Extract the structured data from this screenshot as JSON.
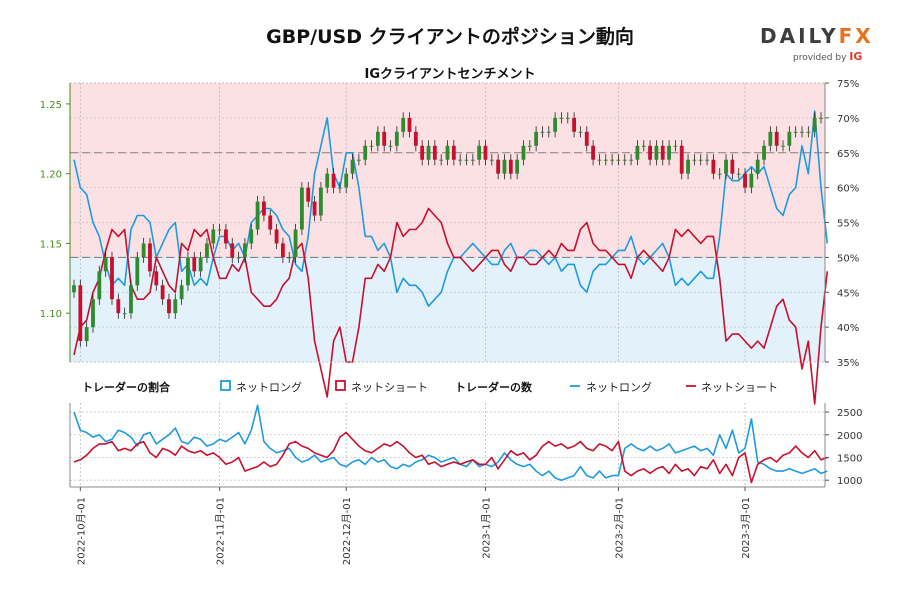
{
  "title": "GBP/USD クライアントのポジション動向",
  "subtitle": "IGクライアントセンチメント",
  "logo": {
    "brand_left": "DAILY",
    "brand_right": "FX",
    "provided_by": "provided by",
    "ig": "IG"
  },
  "colors": {
    "net_long": "#1e9be0",
    "net_short": "#c8102e",
    "up_candle": "#2e8b2e",
    "down_candle": "#c8102e",
    "wick": "#222222",
    "band_short": "#fbe1e3",
    "band_long": "#e3f1fb",
    "price_axis": "#4a8a1c"
  },
  "legend": {
    "ratio_title": "トレーダーの割合",
    "ratio_long": "ネットロング",
    "ratio_short": "ネットショート",
    "count_title": "トレーダーの数",
    "count_long": "ネットロング",
    "count_short": "ネットショート"
  },
  "chart_data": {
    "type": "line",
    "x_ticks": [
      "2022-10月-01",
      "2022-11月-01",
      "2022-12月-01",
      "2023-1月-01",
      "2023-2月-01",
      "2023-3月-01"
    ],
    "price_axis": {
      "ticks": [
        "1.10",
        "1.15",
        "1.20",
        "1.25"
      ],
      "ylim": [
        1.065,
        1.265
      ]
    },
    "percent_axis": {
      "ticks": [
        "35%",
        "40%",
        "45%",
        "50%",
        "55%",
        "60%",
        "65%",
        "70%",
        "75%"
      ],
      "ylim": [
        35,
        75
      ]
    },
    "count_axis": {
      "ticks": [
        "1000",
        "1500",
        "2000",
        "2500"
      ],
      "ylim": [
        850,
        2700
      ]
    },
    "reference_lines": {
      "price": 1.215,
      "percent": 50
    },
    "price_close": [
      1.12,
      1.08,
      1.09,
      1.11,
      1.13,
      1.14,
      1.11,
      1.1,
      1.1,
      1.12,
      1.14,
      1.15,
      1.13,
      1.12,
      1.11,
      1.1,
      1.11,
      1.12,
      1.14,
      1.13,
      1.14,
      1.15,
      1.16,
      1.16,
      1.15,
      1.14,
      1.14,
      1.15,
      1.16,
      1.18,
      1.17,
      1.16,
      1.15,
      1.14,
      1.14,
      1.16,
      1.19,
      1.18,
      1.17,
      1.19,
      1.2,
      1.19,
      1.19,
      1.2,
      1.21,
      1.21,
      1.22,
      1.22,
      1.23,
      1.22,
      1.22,
      1.23,
      1.24,
      1.23,
      1.22,
      1.21,
      1.22,
      1.21,
      1.21,
      1.22,
      1.21,
      1.21,
      1.21,
      1.21,
      1.22,
      1.21,
      1.21,
      1.2,
      1.21,
      1.2,
      1.21,
      1.22,
      1.22,
      1.23,
      1.23,
      1.23,
      1.24,
      1.24,
      1.24,
      1.23,
      1.23,
      1.22,
      1.21,
      1.21,
      1.21,
      1.21,
      1.21,
      1.21,
      1.21,
      1.22,
      1.22,
      1.21,
      1.22,
      1.21,
      1.22,
      1.22,
      1.2,
      1.21,
      1.21,
      1.21,
      1.21,
      1.2,
      1.2,
      1.21,
      1.2,
      1.2,
      1.19,
      1.2,
      1.21,
      1.22,
      1.23,
      1.22,
      1.22,
      1.23,
      1.23,
      1.23,
      1.23,
      1.24,
      1.24
    ],
    "percent_net_long": [
      64,
      60,
      59,
      55,
      53,
      49,
      46,
      47,
      46,
      54,
      56,
      56,
      55,
      50,
      52,
      54,
      55,
      48,
      49,
      46,
      47,
      46,
      50,
      53,
      53,
      51,
      52,
      50,
      55,
      56,
      57,
      57,
      56,
      54,
      53,
      49,
      48,
      53,
      62,
      66,
      70,
      62,
      60,
      65,
      65,
      60,
      53,
      53,
      51,
      52,
      50,
      45,
      47,
      46,
      46,
      45,
      43,
      44,
      45,
      48,
      50,
      50,
      51,
      52,
      51,
      50,
      49,
      49,
      51,
      52,
      50,
      50,
      51,
      51,
      50,
      49,
      50,
      48,
      49,
      49,
      46,
      45,
      48,
      49,
      49,
      50,
      51,
      51,
      53,
      50,
      49,
      50,
      51,
      52,
      50,
      46,
      47,
      46,
      47,
      48,
      47,
      47,
      53,
      62,
      61,
      61,
      62,
      63,
      62,
      63,
      60,
      57,
      56,
      59,
      60,
      66,
      62,
      71,
      60,
      52
    ],
    "percent_net_short": [
      36,
      40,
      41,
      45,
      47,
      51,
      54,
      53,
      54,
      46,
      44,
      44,
      45,
      50,
      48,
      46,
      45,
      52,
      51,
      54,
      53,
      54,
      50,
      47,
      47,
      49,
      48,
      50,
      45,
      44,
      43,
      43,
      44,
      46,
      47,
      51,
      52,
      47,
      38,
      34,
      30,
      38,
      40,
      35,
      35,
      40,
      47,
      47,
      49,
      48,
      50,
      55,
      53,
      54,
      54,
      55,
      57,
      56,
      55,
      52,
      50,
      50,
      49,
      48,
      49,
      50,
      51,
      51,
      49,
      48,
      50,
      50,
      49,
      49,
      50,
      51,
      50,
      52,
      51,
      51,
      54,
      55,
      52,
      51,
      51,
      50,
      49,
      49,
      47,
      50,
      51,
      50,
      49,
      48,
      50,
      54,
      53,
      54,
      53,
      52,
      53,
      53,
      47,
      38,
      39,
      39,
      38,
      37,
      38,
      37,
      40,
      43,
      44,
      41,
      40,
      34,
      38,
      29,
      40,
      48
    ],
    "count_net_long": [
      2500,
      2100,
      2050,
      1950,
      2000,
      1850,
      1900,
      2100,
      2050,
      1950,
      1750,
      2000,
      2050,
      1800,
      1900,
      2000,
      2150,
      1850,
      1800,
      1950,
      1900,
      1750,
      1800,
      1900,
      1850,
      1950,
      2050,
      1800,
      2100,
      2650,
      1850,
      1700,
      1600,
      1650,
      1700,
      1500,
      1400,
      1450,
      1550,
      1400,
      1450,
      1500,
      1350,
      1300,
      1400,
      1450,
      1350,
      1500,
      1400,
      1450,
      1300,
      1250,
      1350,
      1300,
      1400,
      1450,
      1550,
      1500,
      1400,
      1450,
      1500,
      1350,
      1300,
      1450,
      1300,
      1350,
      1300,
      1400,
      1600,
      1450,
      1350,
      1300,
      1350,
      1200,
      1100,
      1200,
      1050,
      1000,
      1050,
      1100,
      1300,
      1100,
      1050,
      1200,
      1050,
      1100,
      1100,
      1700,
      1800,
      1700,
      1650,
      1750,
      1650,
      1700,
      1800,
      1600,
      1650,
      1700,
      1750,
      1650,
      1700,
      1550,
      2000,
      1700,
      2100,
      1600,
      1700,
      2350,
      1400,
      1350,
      1250,
      1200,
      1200,
      1250,
      1200,
      1150,
      1200,
      1250,
      1150,
      1200
    ],
    "count_net_short": [
      1400,
      1450,
      1550,
      1700,
      1800,
      1800,
      1850,
      1650,
      1700,
      1650,
      1800,
      1850,
      1600,
      1500,
      1700,
      1650,
      1550,
      1750,
      1650,
      1600,
      1650,
      1550,
      1600,
      1500,
      1350,
      1400,
      1500,
      1200,
      1250,
      1300,
      1400,
      1300,
      1350,
      1550,
      1800,
      1850,
      1750,
      1700,
      1600,
      1550,
      1500,
      1650,
      1950,
      2050,
      1900,
      1750,
      1650,
      1600,
      1700,
      1800,
      1750,
      1850,
      1750,
      1600,
      1500,
      1550,
      1350,
      1400,
      1300,
      1350,
      1400,
      1350,
      1400,
      1450,
      1350,
      1350,
      1500,
      1250,
      1450,
      1650,
      1550,
      1600,
      1450,
      1550,
      1750,
      1850,
      1750,
      1800,
      1700,
      1750,
      1850,
      1700,
      1650,
      1800,
      1750,
      1650,
      1850,
      1200,
      1100,
      1200,
      1250,
      1150,
      1250,
      1300,
      1150,
      1350,
      1200,
      1250,
      1100,
      1300,
      1250,
      1450,
      1150,
      1350,
      1100,
      1500,
      1600,
      950,
      1350,
      1450,
      1500,
      1400,
      1550,
      1600,
      1750,
      1600,
      1500,
      1650,
      1450,
      1500
    ]
  }
}
